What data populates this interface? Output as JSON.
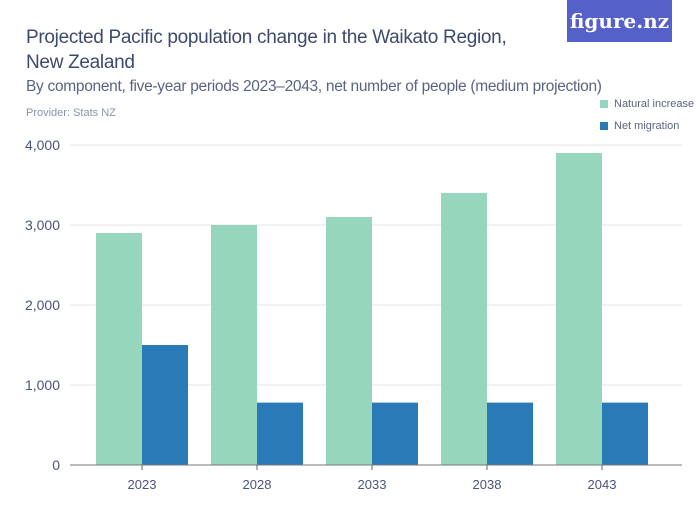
{
  "header": {
    "title": "Projected Pacific population change in the Waikato Region, New Zealand",
    "subtitle": "By component, five-year periods 2023–2043, net number of people (medium projection)",
    "provider": "Provider: Stats NZ",
    "logo": "figure.nz",
    "logo_color": "#5560c8"
  },
  "chart_data": {
    "type": "bar",
    "title": "Projected Pacific population change in the Waikato Region, New Zealand",
    "subtitle": "By component, five-year periods 2023–2043, net number of people (medium projection)",
    "categories": [
      "2023",
      "2028",
      "2033",
      "2038",
      "2043"
    ],
    "series": [
      {
        "name": "Natural increase",
        "color": "#96d6bc",
        "values": [
          2900,
          3000,
          3100,
          3400,
          3900
        ]
      },
      {
        "name": "Net migration",
        "color": "#2a7ab7",
        "values": [
          1500,
          780,
          780,
          780,
          780
        ]
      }
    ],
    "ylim": [
      0,
      4000
    ],
    "yticks": [
      0,
      1000,
      2000,
      3000,
      4000
    ],
    "ytick_labels": [
      "0",
      "1,000",
      "2,000",
      "3,000",
      "4,000"
    ],
    "xlabel": "",
    "ylabel": "",
    "grid": true,
    "legend": "top-right"
  }
}
